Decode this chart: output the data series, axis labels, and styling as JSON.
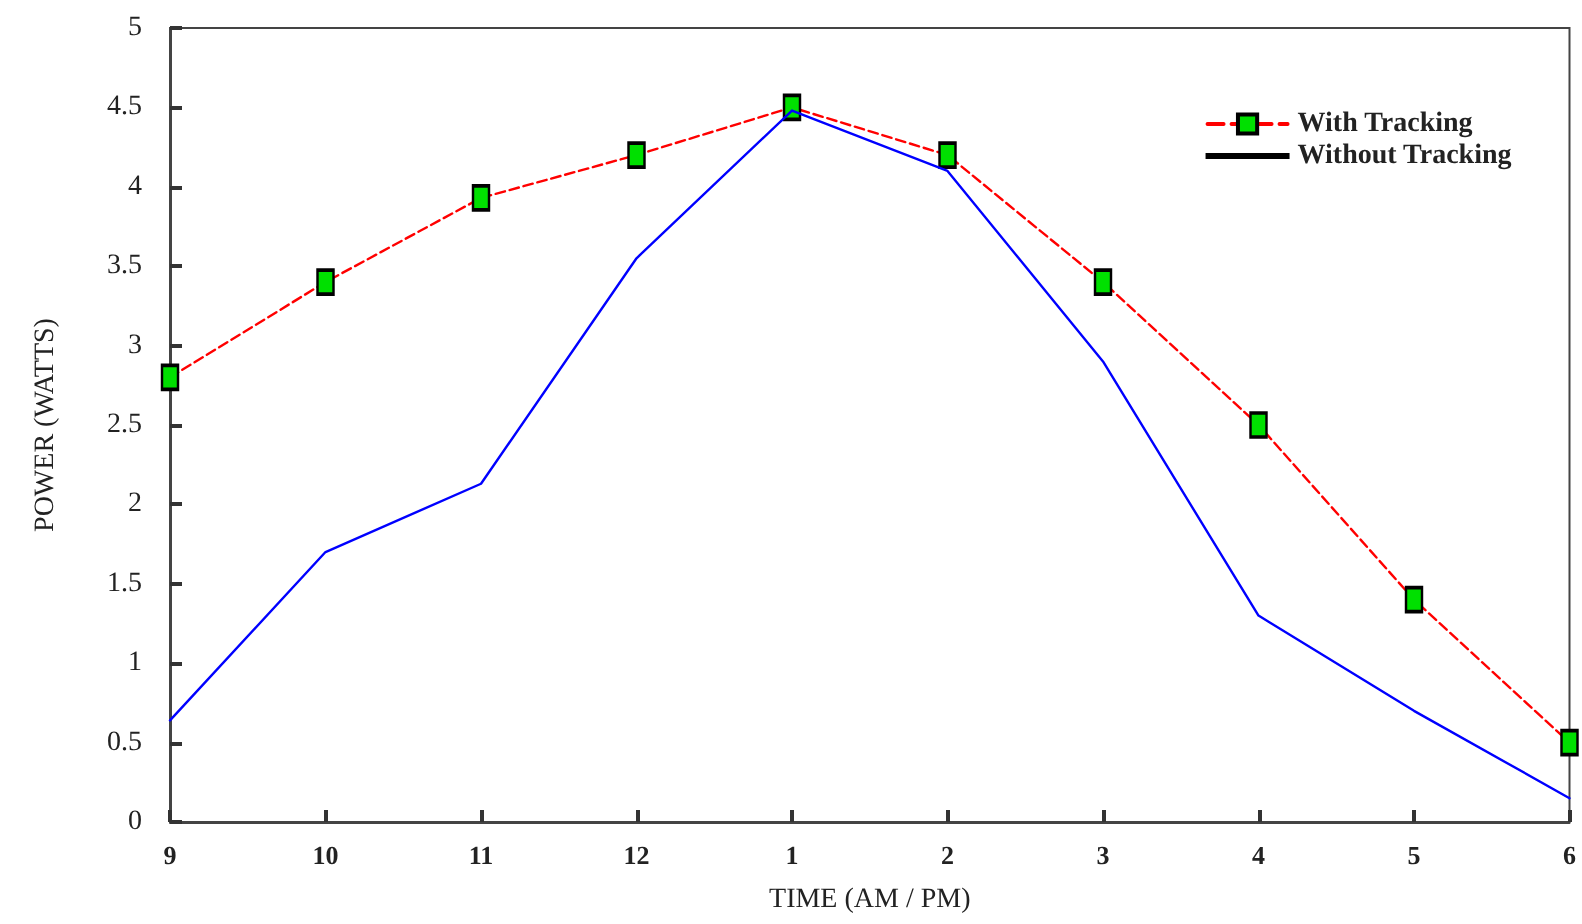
{
  "chart_data": {
    "type": "line",
    "xlabel": "TIME (AM / PM)",
    "ylabel": "POWER (WATTS)",
    "categories": [
      "9",
      "10",
      "11",
      "12",
      "1",
      "2",
      "3",
      "4",
      "5",
      "6"
    ],
    "series": [
      {
        "name": "With Tracking",
        "color": "#ff0000",
        "values": [
          2.8,
          3.4,
          3.93,
          4.2,
          4.5,
          4.2,
          3.4,
          2.5,
          1.4,
          0.5
        ],
        "marker": "square",
        "line_style": "dashed"
      },
      {
        "name": "Without Tracking",
        "color": "#0000ff",
        "values": [
          0.64,
          1.7,
          2.13,
          3.55,
          4.48,
          4.1,
          2.9,
          1.3,
          0.7,
          0.15
        ],
        "marker": "none",
        "line_style": "solid"
      }
    ],
    "ylim": [
      0,
      5
    ],
    "yticks": [
      0,
      0.5,
      1,
      1.5,
      2,
      2.5,
      3,
      3.5,
      4,
      4.5,
      5
    ],
    "grid": false,
    "legend": "top right"
  }
}
